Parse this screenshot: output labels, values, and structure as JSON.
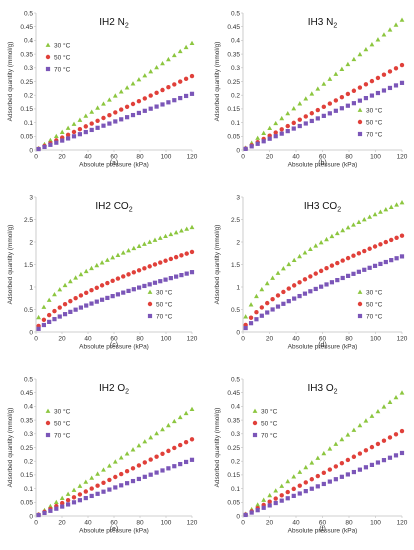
{
  "colors": {
    "30": "#8cc63f",
    "50": "#e0403a",
    "70": "#7b56b8"
  },
  "chart_data": [
    {
      "type": "scatter",
      "title_main": "IH2 N",
      "title_sub": "2",
      "caption": "(a)",
      "xlabel": "Absolute pressure (kPa)",
      "ylabel": "Adsorbed quantity (mmol/g)",
      "xlim": [
        0,
        120
      ],
      "ylim": [
        0,
        0.5
      ],
      "xticks": [
        0,
        20,
        40,
        60,
        80,
        100,
        120
      ],
      "yticks": [
        0,
        0.05,
        0.1,
        0.15,
        0.2,
        0.25,
        0.3,
        0.35,
        0.4,
        0.45,
        0.5
      ],
      "ytick_labels": [
        "0",
        "0.05",
        "0.1",
        "0.15",
        "0.2",
        "0.25",
        "0.3",
        "0.35",
        "0.4",
        "0.45",
        "0.5"
      ],
      "legend_position": "upper-left",
      "model": "linear",
      "series": [
        {
          "name": "30 °C",
          "temp": "30",
          "marker": "triangle",
          "end": 0.39,
          "n": 27
        },
        {
          "name": "50 °C",
          "temp": "50",
          "marker": "circle",
          "end": 0.27,
          "n": 27
        },
        {
          "name": "70 °C",
          "temp": "70",
          "marker": "square",
          "end": 0.205,
          "n": 27
        }
      ]
    },
    {
      "type": "scatter",
      "title_main": "IH3 N",
      "title_sub": "2",
      "caption": "(b)",
      "xlabel": "Absolute pressure (kPa)",
      "ylabel": "Adsorbed quantity (mmol/g)",
      "xlim": [
        0,
        120
      ],
      "ylim": [
        0,
        0.5
      ],
      "xticks": [
        0,
        20,
        40,
        60,
        80,
        100,
        120
      ],
      "yticks": [
        0,
        0.05,
        0.1,
        0.15,
        0.2,
        0.25,
        0.3,
        0.35,
        0.4,
        0.45,
        0.5
      ],
      "ytick_labels": [
        "0",
        "0.05",
        "0.1",
        "0.15",
        "0.2",
        "0.25",
        "0.3",
        "0.35",
        "0.4",
        "0.45",
        "0.5"
      ],
      "legend_position": "lower-right",
      "model": "linear",
      "series": [
        {
          "name": "30 °C",
          "temp": "30",
          "marker": "triangle",
          "end": 0.475,
          "n": 27
        },
        {
          "name": "50 °C",
          "temp": "50",
          "marker": "circle",
          "end": 0.31,
          "n": 27
        },
        {
          "name": "70 °C",
          "temp": "70",
          "marker": "square",
          "end": 0.245,
          "n": 27
        }
      ]
    },
    {
      "type": "scatter",
      "title_main": "IH2 CO",
      "title_sub": "2",
      "caption": "(c)",
      "xlabel": "Absolute pressure (kPa)",
      "ylabel": "Adsorbed quantity (mmol/g)",
      "xlim": [
        0,
        120
      ],
      "ylim": [
        0,
        3
      ],
      "xticks": [
        0,
        20,
        40,
        60,
        80,
        100,
        120
      ],
      "yticks": [
        0,
        0.5,
        1,
        1.5,
        2,
        2.5,
        3
      ],
      "ytick_labels": [
        "0",
        "0.5",
        "1",
        "1.5",
        "2",
        "2.5",
        "3"
      ],
      "legend_position": "lower-right",
      "model": "power",
      "series": [
        {
          "name": "30 °C",
          "temp": "30",
          "marker": "triangle",
          "end": 2.33,
          "exp": 0.48,
          "n": 30
        },
        {
          "name": "50 °C",
          "temp": "50",
          "marker": "circle",
          "end": 1.78,
          "exp": 0.63,
          "n": 30
        },
        {
          "name": "70 °C",
          "temp": "70",
          "marker": "square",
          "end": 1.33,
          "exp": 0.72,
          "n": 30
        }
      ]
    },
    {
      "type": "scatter",
      "title_main": "IH3 CO",
      "title_sub": "2",
      "caption": "(d)",
      "xlabel": "Absolute pressure (kPa)",
      "ylabel": "Adsorbed quantity (mmol/g)",
      "xlim": [
        0,
        120
      ],
      "ylim": [
        0,
        3
      ],
      "xticks": [
        0,
        20,
        40,
        60,
        80,
        100,
        120
      ],
      "yticks": [
        0,
        0.5,
        1,
        1.5,
        2,
        2.5,
        3
      ],
      "ytick_labels": [
        "0",
        "0.5",
        "1",
        "1.5",
        "2",
        "2.5",
        "3"
      ],
      "legend_position": "lower-right",
      "model": "power",
      "series": [
        {
          "name": "30 °C",
          "temp": "30",
          "marker": "triangle",
          "end": 2.88,
          "exp": 0.52,
          "n": 30
        },
        {
          "name": "50 °C",
          "temp": "50",
          "marker": "circle",
          "end": 2.14,
          "exp": 0.64,
          "n": 30
        },
        {
          "name": "70 °C",
          "temp": "70",
          "marker": "square",
          "end": 1.68,
          "exp": 0.72,
          "n": 30
        }
      ]
    },
    {
      "type": "scatter",
      "title_main": "IH2 O",
      "title_sub": "2",
      "caption": "(e)",
      "xlabel": "Absolute pressure (kPa)",
      "ylabel": "Adsorbed quantity (mmol/g)",
      "xlim": [
        0,
        120
      ],
      "ylim": [
        0,
        0.5
      ],
      "xticks": [
        0,
        20,
        40,
        60,
        80,
        100,
        120
      ],
      "yticks": [
        0,
        0.05,
        0.1,
        0.15,
        0.2,
        0.25,
        0.3,
        0.35,
        0.4,
        0.45,
        0.5
      ],
      "ytick_labels": [
        "0",
        "0.05",
        "0.1",
        "0.15",
        "0.2",
        "0.25",
        "0.3",
        "0.35",
        "0.4",
        "0.45",
        "0.5"
      ],
      "legend_position": "upper-left",
      "model": "linear",
      "series": [
        {
          "name": "30 °C",
          "temp": "30",
          "marker": "triangle",
          "end": 0.39,
          "n": 27
        },
        {
          "name": "50 °C",
          "temp": "50",
          "marker": "circle",
          "end": 0.28,
          "n": 27
        },
        {
          "name": "70 °C",
          "temp": "70",
          "marker": "square",
          "end": 0.205,
          "n": 27
        }
      ]
    },
    {
      "type": "scatter",
      "title_main": "IH3 O",
      "title_sub": "2",
      "caption": "(f)",
      "xlabel": "Absolute pressure (kPa)",
      "ylabel": "Adsorbed quantity (mmol/g)",
      "xlim": [
        0,
        120
      ],
      "ylim": [
        0,
        0.5
      ],
      "xticks": [
        0,
        20,
        40,
        60,
        80,
        100,
        120
      ],
      "yticks": [
        0,
        0.05,
        0.1,
        0.15,
        0.2,
        0.25,
        0.3,
        0.35,
        0.4,
        0.45,
        0.5
      ],
      "ytick_labels": [
        "0",
        "0.05",
        "0.1",
        "0.15",
        "0.2",
        "0.25",
        "0.3",
        "0.35",
        "0.4",
        "0.45",
        "0.5"
      ],
      "legend_position": "upper-left",
      "model": "linear",
      "series": [
        {
          "name": "30 °C",
          "temp": "30",
          "marker": "triangle",
          "end": 0.45,
          "n": 27
        },
        {
          "name": "50 °C",
          "temp": "50",
          "marker": "circle",
          "end": 0.31,
          "n": 27
        },
        {
          "name": "70 °C",
          "temp": "70",
          "marker": "square",
          "end": 0.23,
          "n": 27
        }
      ]
    }
  ]
}
